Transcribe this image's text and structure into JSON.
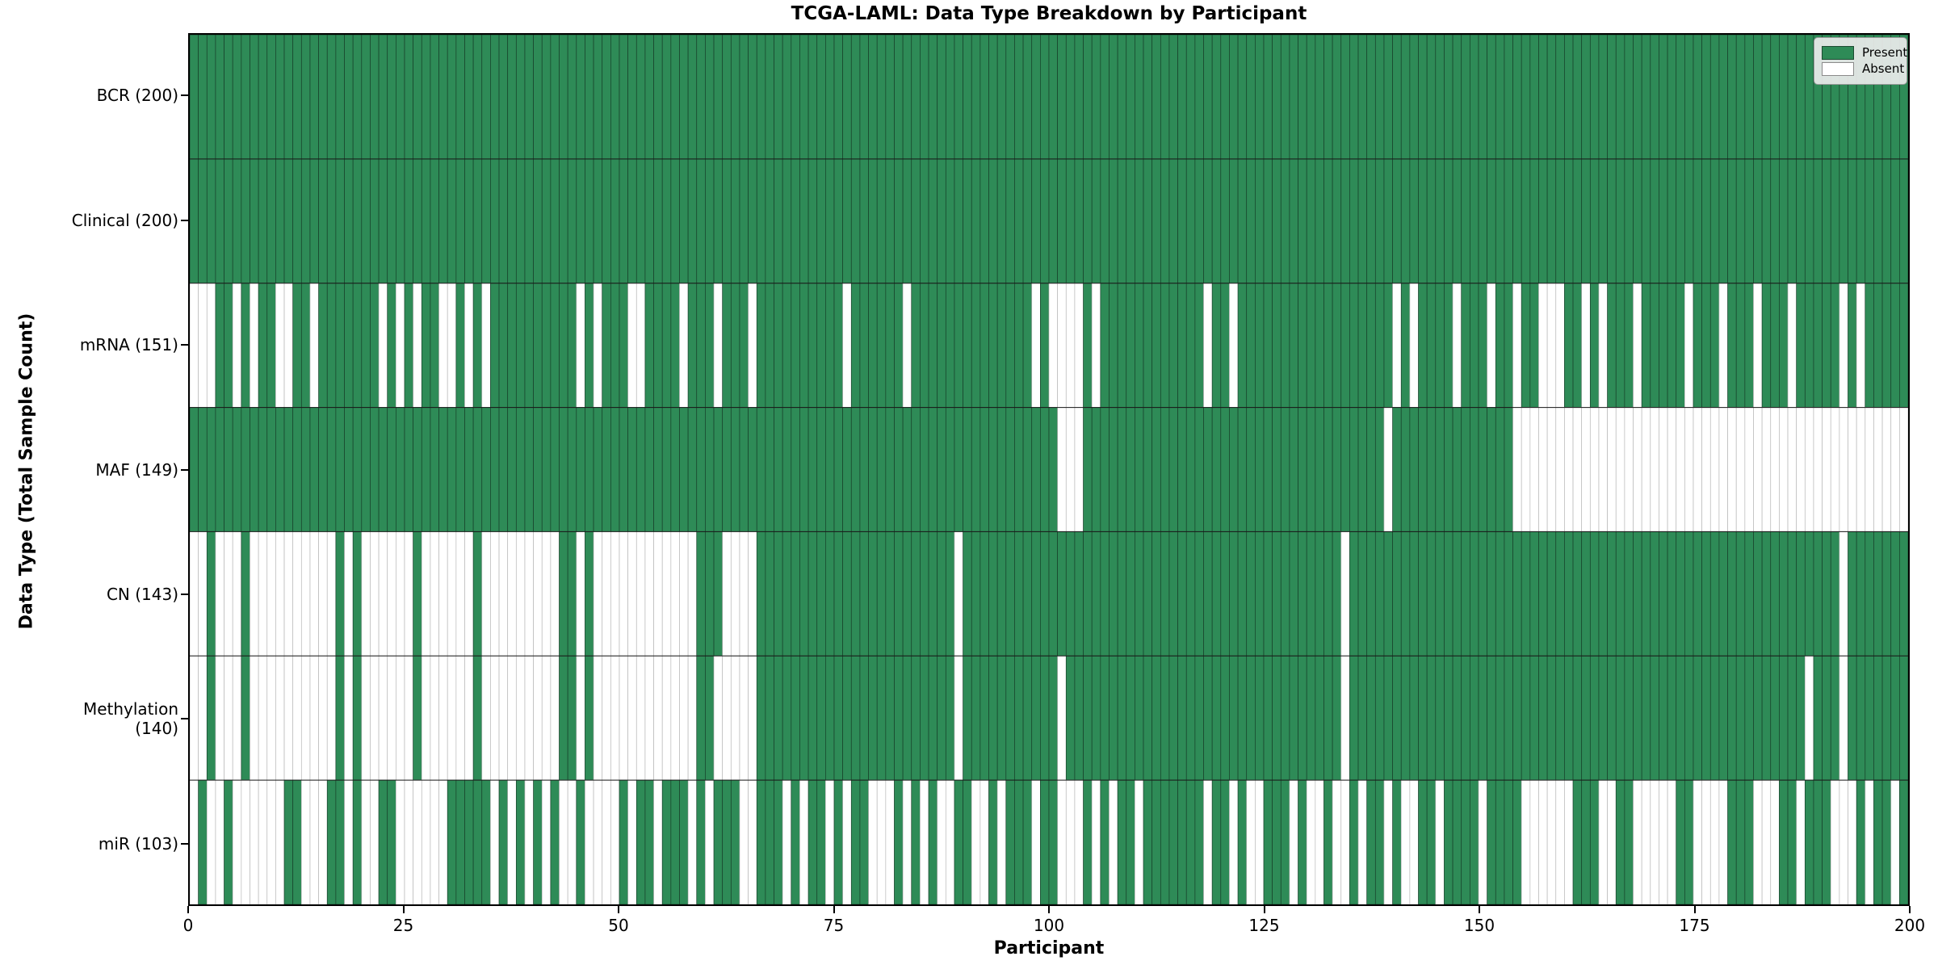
{
  "chart_data": {
    "type": "heatmap",
    "title": "TCGA-LAML: Data Type Breakdown by Participant",
    "x_axis": {
      "label": "Participant",
      "range": [
        0,
        200
      ],
      "ticks": [
        0,
        25,
        50,
        75,
        100,
        125,
        150,
        175,
        200
      ]
    },
    "y_axis": {
      "label": "Data Type (Total Sample Count)"
    },
    "legend": {
      "present_label": "Present",
      "absent_label": "Absent",
      "position": "upper right"
    },
    "colors": {
      "present": "#2e8b57",
      "absent": "#ffffff",
      "present_edge": "#17402a",
      "absent_edge": "#b8b8b8",
      "row_divider": "#1a1a1a",
      "spine": "#000000"
    },
    "n_participants": 200,
    "encoding": "presence strings: one char per participant 0-199; 1=Present, 0=Absent",
    "rows": [
      {
        "label": "BCR (200)",
        "total": 200,
        "presence": "11111111111111111111111111111111111111111111111111111111111111111111111111111111111111111111111111111111111111111111111111111111111111111111111111111111111111111111111111111111111111111111111111111111"
      },
      {
        "label": "Clinical (200)",
        "total": 200,
        "presence": "11111111111111111111111111111111111111111111111111111111111111111111111111111111111111111111111111111111111111111111111111111111111111111111111111111111111111111111111111111111111111111111111111111111"
      },
      {
        "label": "mRNA (151)",
        "total": 151,
        "presence": "00011010110011011111110101011001010111111111101011100111101110111011111111110111111011111111111111010000101111111111110110111111111111111111010111101110110110001101011101111101110111011101111101011111"
      },
      {
        "label": "MAF (149)",
        "total": 149,
        "presence": "11111111111111111111111111111111111111111111111111111111111111111111111111111111111111111111111111111000111111111111111111111111111111111110111111111111110000000000000000000000000000000000000000000000"
      },
      {
        "label": "CN (143)",
        "total": 143,
        "presence": "00100010000000000101000000100000010000000001101000000000000111000011111111111111111111111011111111111111111111111111111111111111111111011111111111111111111111111111111111111111111111111111111101111111111"
      },
      {
        "label": "Methylation (140)",
        "total": 140,
        "presence": "00100010000000000101000000100000010000000001101000000000000110000011111111111111111111111011111111111011111111111111111111111111111111011111111111111111111111111111111111111111111111111111011101111111111"
      },
      {
        "label": "miR (103)",
        "total": 103,
        "presence": "01001000000110001101001100000011111010101010010000101101110101110011101011010110001010100110010111011000101011011111110110100111010010010110100110111101111000000111001100000110000111000110111000101101"
      }
    ]
  }
}
